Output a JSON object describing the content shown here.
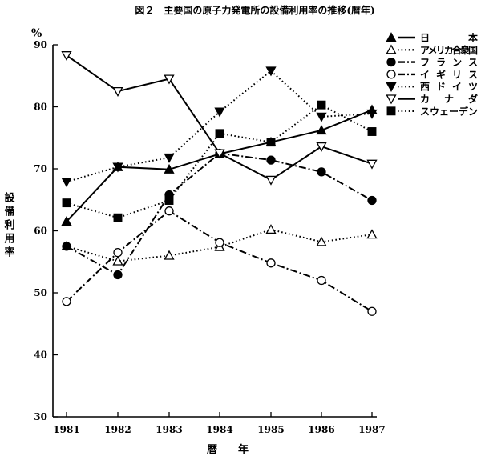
{
  "chart_data": {
    "type": "line",
    "title": "図２　主要国の原子力発電所の設備利用率の推移(暦年)",
    "xlabel": "暦　　年",
    "ylabel": "設備利用率",
    "yunit": "%",
    "categories": [
      "1981",
      "1982",
      "1983",
      "1984",
      "1985",
      "1986",
      "1987"
    ],
    "ylim": [
      30,
      90
    ],
    "yticks": [
      30,
      40,
      50,
      60,
      70,
      80,
      90
    ],
    "grid": false,
    "legend_position": "top-right",
    "series": [
      {
        "name": "日　　　　本",
        "marker": "triangle-up-filled",
        "line": "solid",
        "values": [
          61.5,
          70.3,
          69.9,
          72.4,
          74.3,
          76.2,
          79.5
        ]
      },
      {
        "name": "アメリカ合衆国",
        "marker": "triangle-up-open",
        "line": "dotted",
        "values": [
          57.5,
          55.1,
          56.0,
          57.4,
          60.2,
          58.2,
          59.4
        ]
      },
      {
        "name": "フランス",
        "marker": "circle-filled",
        "line": "dashdot",
        "values": [
          57.5,
          52.9,
          65.8,
          72.5,
          71.4,
          69.5,
          64.9
        ]
      },
      {
        "name": "イギリス",
        "marker": "circle-open",
        "line": "dashdot",
        "values": [
          48.6,
          56.5,
          63.2,
          58.1,
          54.8,
          52.0,
          47.0
        ]
      },
      {
        "name": "西ドイツ",
        "marker": "triangle-down-filled",
        "line": "dotted",
        "values": [
          67.9,
          70.3,
          71.8,
          79.2,
          85.8,
          78.4,
          78.9
        ]
      },
      {
        "name": "カ　ナ　ダ",
        "marker": "triangle-down-open",
        "line": "solid",
        "values": [
          88.3,
          82.5,
          84.5,
          72.5,
          68.2,
          73.6,
          70.8
        ]
      },
      {
        "name": "スウェーデン",
        "marker": "square-filled",
        "line": "dotted",
        "values": [
          64.5,
          62.1,
          64.9,
          75.7,
          74.3,
          80.3,
          76.0
        ]
      }
    ]
  }
}
